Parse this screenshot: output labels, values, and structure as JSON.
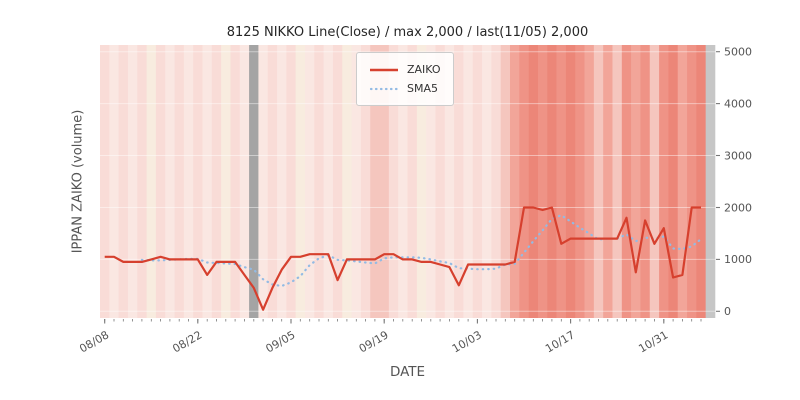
{
  "chart_data": {
    "type": "line",
    "title": "8125 NIKKO Line(Close) / max 2,000 / last(11/05) 2,000",
    "xlabel": "DATE",
    "ylabel": "IPPAN ZAIKO (volume)",
    "ylim": [
      0,
      5000
    ],
    "yticks": [
      0,
      1000,
      2000,
      3000,
      4000,
      5000
    ],
    "ytick_labels": [
      "0",
      "1000",
      "2000",
      "3000",
      "4000",
      "5000"
    ],
    "xtick_labels": [
      "08/08",
      "08/22",
      "09/05",
      "09/19",
      "10/03",
      "10/17",
      "10/31"
    ],
    "xtick_indices": [
      0,
      10,
      20,
      30,
      40,
      50,
      60
    ],
    "grid": false,
    "legend_position": "upper center",
    "series": [
      {
        "name": "ZAIKO",
        "style": "solid",
        "color": "#d6402e",
        "values": [
          1050,
          1050,
          950,
          950,
          950,
          1000,
          1050,
          1000,
          1000,
          1000,
          1000,
          700,
          950,
          950,
          950,
          700,
          450,
          30,
          450,
          800,
          1050,
          1050,
          1100,
          1100,
          1100,
          600,
          1000,
          1000,
          1000,
          1000,
          1100,
          1100,
          1000,
          1000,
          950,
          950,
          900,
          850,
          500,
          900,
          900,
          900,
          900,
          900,
          950,
          2000,
          2000,
          1950,
          2000,
          1300,
          1400,
          1400,
          1400,
          1400,
          1400,
          1400,
          1800,
          750,
          1750,
          1300,
          1600,
          650,
          700,
          2000,
          2000
        ]
      },
      {
        "name": "SMA5",
        "style": "dotted",
        "color": "#93bbe4",
        "derived_from": "ZAIKO",
        "window": 5
      }
    ],
    "band_colors": [
      "#f9dcd7",
      "#fae7e2",
      "#f9dcd7",
      "#fae7e2",
      "#f9dcd7",
      "#f8ecdf",
      "#f9dcd7",
      "#fae7e2",
      "#f9dcd7",
      "#fae7e2",
      "#f9dcd7",
      "#fae7e2",
      "#f9dcd7",
      "#f8ecdf",
      "#f9dcd7",
      "#fae7e2",
      "#a4a4a4",
      "#fae7e2",
      "#f9dcd7",
      "#fae7e2",
      "#f9dcd7",
      "#f8ecdf",
      "#fae7e2",
      "#f9dcd7",
      "#fae7e2",
      "#f9dcd7",
      "#f8ecdf",
      "#fae7e2",
      "#f9dcd7",
      "#f5c6be",
      "#f5c6be",
      "#f9dcd7",
      "#fae7e2",
      "#f9dcd7",
      "#f8ecdf",
      "#fae7e2",
      "#f9dcd7",
      "#fae7e2",
      "#f9dcd7",
      "#fae7e2",
      "#f9dcd7",
      "#fae7e2",
      "#f9dcd7",
      "#f5c6be",
      "#f2a599",
      "#ef9386",
      "#ec8678",
      "#ef9386",
      "#ec8678",
      "#ef9386",
      "#ec8678",
      "#ef9386",
      "#f2a599",
      "#f5c6be",
      "#f2a599",
      "#f5c6be",
      "#ef9386",
      "#f2a599",
      "#ef9386",
      "#f5c6be",
      "#ef9386",
      "#ec8678",
      "#f2a599",
      "#ef9386",
      "#ec8678",
      "#c6c6c6"
    ]
  },
  "colors": {
    "page_bg": "#ffffff",
    "plot_bg": "#e9e9e9",
    "title_text": "#262626",
    "text_muted": "#555555",
    "tick": "#777777",
    "legend_border": "#cccccc"
  }
}
